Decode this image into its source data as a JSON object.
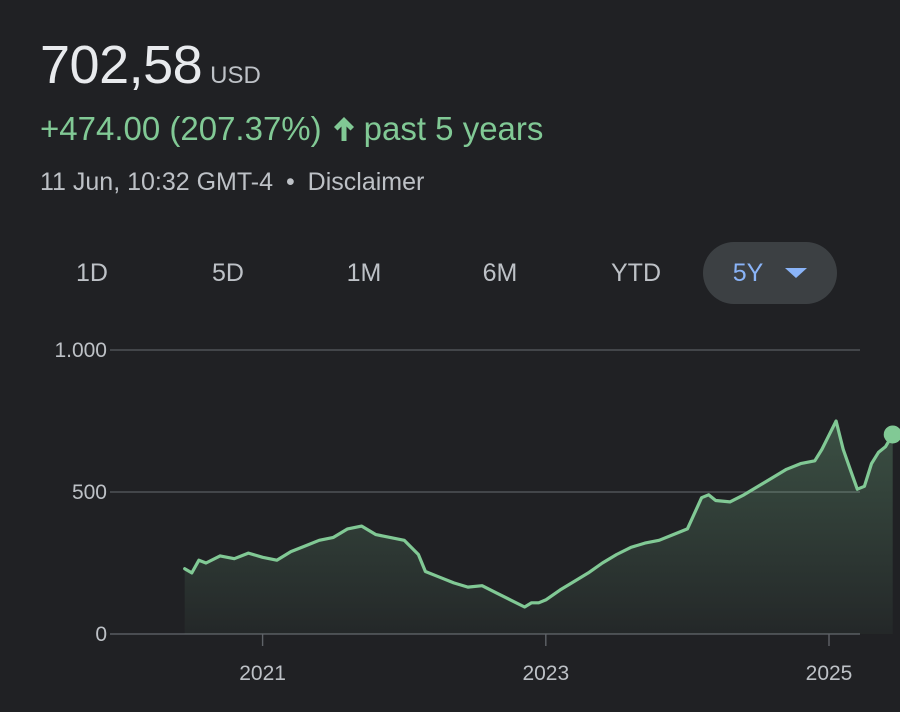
{
  "quote": {
    "price": "702,58",
    "currency": "USD",
    "change": "+474.00 (207.37%)",
    "period": "past 5 years",
    "timestamp": "11 Jun, 10:32 GMT-4",
    "separator": "•",
    "disclaimer": "Disclaimer"
  },
  "tabs": [
    {
      "label": "1D",
      "active": false
    },
    {
      "label": "5D",
      "active": false
    },
    {
      "label": "1M",
      "active": false
    },
    {
      "label": "6M",
      "active": false
    },
    {
      "label": "YTD",
      "active": false
    },
    {
      "label": "5Y",
      "active": true
    }
  ],
  "colors": {
    "background": "#202124",
    "line": "#81c995",
    "positive": "#81c995",
    "active_tab": "#8ab4f8",
    "grid": "#5f6368"
  },
  "chart_data": {
    "type": "area",
    "title": "",
    "xlabel": "",
    "ylabel": "",
    "ylim": [
      0,
      1000
    ],
    "xlim": [
      2020.0,
      2025.6
    ],
    "grid": true,
    "y_ticks": [
      0,
      500,
      1000
    ],
    "y_tick_labels": [
      "0",
      "500",
      "1.000"
    ],
    "x_ticks": [
      2021,
      2023,
      2025
    ],
    "x_tick_labels": [
      "2021",
      "2023",
      "2025"
    ],
    "series": [
      {
        "x": [
          "2020.45",
          "2020.5",
          "2020.55",
          "2020.6",
          "2020.7",
          "2020.8",
          "2020.9",
          "2021.0",
          "2021.1",
          "2021.2",
          "2021.3",
          "2021.4",
          "2021.5",
          "2021.6",
          "2021.7",
          "2021.8",
          "2021.9",
          "2022.0",
          "2022.1",
          "2022.15",
          "2022.25",
          "2022.35",
          "2022.45",
          "2022.55",
          "2022.65",
          "2022.75",
          "2022.85",
          "2022.9",
          "2022.95",
          "2023.0",
          "2023.1",
          "2023.2",
          "2023.3",
          "2023.4",
          "2023.5",
          "2023.6",
          "2023.7",
          "2023.8",
          "2023.9",
          "2024.0",
          "2024.1",
          "2024.15",
          "2024.2",
          "2024.3",
          "2024.4",
          "2024.5",
          "2024.6",
          "2024.7",
          "2024.8",
          "2024.9",
          "2024.95",
          "2025.0",
          "2025.05",
          "2025.1",
          "2025.15",
          "2025.2",
          "2025.25",
          "2025.3",
          "2025.35",
          "2025.4",
          "2025.45"
        ],
        "values": [
          230,
          215,
          260,
          250,
          275,
          265,
          285,
          270,
          260,
          290,
          310,
          330,
          340,
          370,
          380,
          350,
          340,
          330,
          280,
          220,
          200,
          180,
          165,
          170,
          145,
          120,
          95,
          110,
          110,
          120,
          155,
          185,
          215,
          250,
          280,
          305,
          320,
          330,
          350,
          370,
          480,
          490,
          470,
          465,
          490,
          520,
          550,
          580,
          600,
          610,
          650,
          700,
          750,
          650,
          580,
          510,
          520,
          600,
          640,
          660,
          702.58
        ]
      }
    ]
  }
}
